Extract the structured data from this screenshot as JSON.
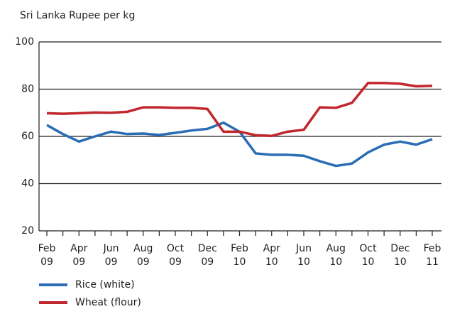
{
  "chart_data": {
    "type": "line",
    "y_label": "Sri Lanka Rupee per kg",
    "categories": [
      "Feb 09",
      null,
      "Apr 09",
      null,
      "Jun 09",
      null,
      "Aug 09",
      null,
      "Oct 09",
      null,
      "Dec 09",
      null,
      "Feb 10",
      null,
      "Apr 10",
      null,
      "Jun 10",
      null,
      "Aug 10",
      null,
      "Oct 10",
      null,
      "Dec 10",
      null,
      "Feb 11"
    ],
    "series": [
      {
        "name": "Rice (white)",
        "color": "#2a6db5",
        "values": [
          64.8,
          61,
          57.8,
          60,
          62,
          61,
          61.2,
          60.6,
          61.5,
          62.5,
          63.2,
          65.8,
          62,
          52.8,
          52.2,
          52.2,
          51.8,
          49.5,
          47.5,
          48.5,
          53.2,
          56.5,
          57.8,
          56.5,
          58.8
        ]
      },
      {
        "name": "Wheat (flour)",
        "color": "#c1272d",
        "values": [
          69.8,
          69.6,
          69.8,
          70.1,
          70,
          70.4,
          72.3,
          72.3,
          72.1,
          72.1,
          71.6,
          62,
          62,
          60.5,
          60.2,
          62,
          62.8,
          72.3,
          72.1,
          74.2,
          82.6,
          82.6,
          82.3,
          81.2,
          81.4
        ]
      }
    ],
    "ylim": [
      20,
      100
    ],
    "yticks": [
      20,
      40,
      60,
      80,
      100
    ],
    "grid": true
  }
}
